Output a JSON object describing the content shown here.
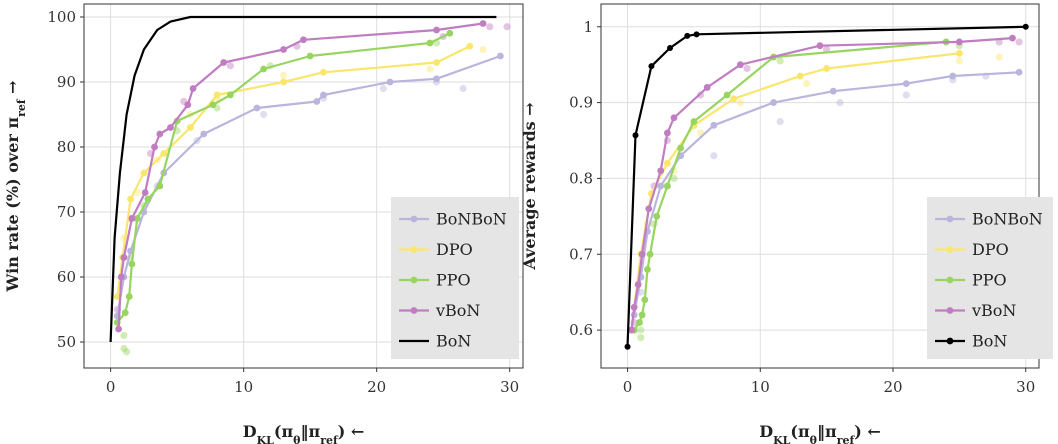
{
  "chart_data": [
    {
      "type": "line",
      "xlabel": "D_KL(π_θ‖π_ref) ←",
      "ylabel": "Win rate (%) over π_ref →",
      "xlim": [
        -2,
        31
      ],
      "ylim": [
        46,
        102
      ],
      "xticks": [
        0,
        10,
        20,
        30
      ],
      "yticks": [
        50,
        60,
        70,
        80,
        90,
        100
      ],
      "grid": true,
      "legend_position": "bottom-right",
      "series": [
        {
          "name": "BoNBoN",
          "color": "#b9b5dc",
          "points": [
            [
              0.5,
              54
            ],
            [
              1,
              60
            ],
            [
              1.5,
              64
            ],
            [
              2.5,
              70
            ],
            [
              4,
              76
            ],
            [
              7,
              82
            ],
            [
              11,
              86
            ],
            [
              15.5,
              87
            ],
            [
              16,
              88
            ],
            [
              21,
              90
            ],
            [
              24.5,
              90.5
            ],
            [
              29.3,
              94
            ]
          ],
          "scatter": [
            [
              1,
              63
            ],
            [
              2,
              69
            ],
            [
              3.5,
              74
            ],
            [
              6.5,
              81
            ],
            [
              11.5,
              85
            ],
            [
              16,
              87.5
            ],
            [
              20.5,
              89
            ],
            [
              24.5,
              90
            ],
            [
              26.5,
              89
            ]
          ]
        },
        {
          "name": "DPO",
          "color": "#f9e66b",
          "points": [
            [
              0.5,
              57
            ],
            [
              0.9,
              63
            ],
            [
              1.5,
              72
            ],
            [
              2.5,
              76
            ],
            [
              4,
              79
            ],
            [
              6,
              83
            ],
            [
              8,
              88
            ],
            [
              13,
              90
            ],
            [
              16,
              91.5
            ],
            [
              24.5,
              93
            ],
            [
              27,
              95.5
            ]
          ],
          "scatter": [
            [
              1,
              66
            ],
            [
              2,
              73
            ],
            [
              3.5,
              78
            ],
            [
              6,
              85
            ],
            [
              8,
              87.5
            ],
            [
              13,
              91
            ],
            [
              24,
              92
            ],
            [
              28,
              95
            ]
          ]
        },
        {
          "name": "PPO",
          "color": "#98d460",
          "points": [
            [
              0.5,
              53
            ],
            [
              1.1,
              54.5
            ],
            [
              1.4,
              57
            ],
            [
              1.6,
              62
            ],
            [
              2,
              69
            ],
            [
              2.8,
              72
            ],
            [
              3.7,
              74
            ],
            [
              5,
              84
            ],
            [
              7.7,
              86.5
            ],
            [
              9,
              88
            ],
            [
              11.5,
              92
            ],
            [
              15,
              94
            ],
            [
              24,
              96
            ],
            [
              25.5,
              97.5
            ]
          ],
          "scatter": [
            [
              1,
              51
            ],
            [
              1,
              49
            ],
            [
              1.2,
              48.5
            ],
            [
              1.5,
              63
            ],
            [
              2.5,
              71
            ],
            [
              5,
              82.5
            ],
            [
              8,
              86
            ],
            [
              12,
              92.5
            ],
            [
              24.5,
              96
            ]
          ]
        },
        {
          "name": "vBoN",
          "color": "#c07dc2",
          "points": [
            [
              0.6,
              52
            ],
            [
              0.8,
              60
            ],
            [
              1,
              63
            ],
            [
              1.6,
              69
            ],
            [
              2.6,
              73
            ],
            [
              3.3,
              80
            ],
            [
              3.7,
              82
            ],
            [
              4.5,
              83
            ],
            [
              5.8,
              86.5
            ],
            [
              6.2,
              89
            ],
            [
              8.5,
              93
            ],
            [
              13,
              95
            ],
            [
              14.5,
              96.5
            ],
            [
              24.5,
              98
            ],
            [
              28,
              99
            ]
          ],
          "scatter": [
            [
              0.5,
              55
            ],
            [
              1.5,
              69
            ],
            [
              3,
              79
            ],
            [
              5.5,
              87
            ],
            [
              9,
              92.5
            ],
            [
              14,
              95.5
            ],
            [
              25,
              97
            ],
            [
              28.5,
              98.5
            ],
            [
              29.8,
              98.5
            ]
          ]
        },
        {
          "name": "BoN",
          "color": "#000000",
          "points": [
            [
              0,
              50
            ],
            [
              0.3,
              66
            ],
            [
              0.7,
              76
            ],
            [
              1.2,
              85
            ],
            [
              1.8,
              91
            ],
            [
              2.5,
              95
            ],
            [
              3.5,
              98
            ],
            [
              4.5,
              99.3
            ],
            [
              6,
              100
            ],
            [
              10,
              100
            ],
            [
              20,
              100
            ],
            [
              29,
              100
            ]
          ],
          "scatter": []
        }
      ]
    },
    {
      "type": "line",
      "xlabel": "D_KL(π_θ‖π_ref) ←",
      "ylabel": "Average rewards →",
      "xlim": [
        -2,
        31
      ],
      "ylim": [
        0.55,
        1.03
      ],
      "xticks": [
        0,
        10,
        20,
        30
      ],
      "yticks": [
        0.6,
        0.7,
        0.8,
        0.9,
        1
      ],
      "grid": true,
      "legend_position": "bottom-right",
      "series": [
        {
          "name": "BoNBoN",
          "color": "#b9b5dc",
          "points": [
            [
              0.5,
              0.62
            ],
            [
              1,
              0.67
            ],
            [
              1.5,
              0.73
            ],
            [
              2.5,
              0.79
            ],
            [
              4,
              0.83
            ],
            [
              6.5,
              0.87
            ],
            [
              11,
              0.9
            ],
            [
              15.5,
              0.915
            ],
            [
              21,
              0.925
            ],
            [
              24.5,
              0.935
            ],
            [
              29.5,
              0.94
            ]
          ],
          "scatter": [
            [
              1,
              0.65
            ],
            [
              3,
              0.79
            ],
            [
              6.5,
              0.83
            ],
            [
              11.5,
              0.875
            ],
            [
              16,
              0.9
            ],
            [
              21,
              0.91
            ],
            [
              24.5,
              0.93
            ],
            [
              27,
              0.935
            ]
          ]
        },
        {
          "name": "DPO",
          "color": "#f9e66b",
          "points": [
            [
              0.5,
              0.63
            ],
            [
              1,
              0.7
            ],
            [
              1.8,
              0.78
            ],
            [
              3,
              0.82
            ],
            [
              5,
              0.87
            ],
            [
              8,
              0.905
            ],
            [
              13,
              0.935
            ],
            [
              15,
              0.945
            ],
            [
              25,
              0.965
            ]
          ],
          "scatter": [
            [
              1.5,
              0.74
            ],
            [
              3.5,
              0.81
            ],
            [
              5.5,
              0.86
            ],
            [
              8.5,
              0.9
            ],
            [
              13.5,
              0.925
            ],
            [
              25,
              0.955
            ],
            [
              28,
              0.96
            ]
          ]
        },
        {
          "name": "PPO",
          "color": "#98d460",
          "points": [
            [
              0.5,
              0.6
            ],
            [
              0.9,
              0.61
            ],
            [
              1.1,
              0.62
            ],
            [
              1.3,
              0.64
            ],
            [
              1.5,
              0.68
            ],
            [
              1.7,
              0.7
            ],
            [
              2.2,
              0.75
            ],
            [
              3,
              0.79
            ],
            [
              4,
              0.84
            ],
            [
              5,
              0.875
            ],
            [
              7.5,
              0.91
            ],
            [
              11,
              0.96
            ],
            [
              24,
              0.98
            ]
          ],
          "scatter": [
            [
              1,
              0.59
            ],
            [
              1,
              0.6
            ],
            [
              2,
              0.74
            ],
            [
              3.5,
              0.8
            ],
            [
              5,
              0.87
            ],
            [
              11.5,
              0.955
            ],
            [
              25,
              0.975
            ]
          ]
        },
        {
          "name": "vBoN",
          "color": "#c07dc2",
          "points": [
            [
              0.3,
              0.6
            ],
            [
              0.5,
              0.63
            ],
            [
              0.8,
              0.66
            ],
            [
              1.1,
              0.7
            ],
            [
              1.6,
              0.76
            ],
            [
              2.5,
              0.81
            ],
            [
              3,
              0.86
            ],
            [
              3.5,
              0.88
            ],
            [
              6,
              0.92
            ],
            [
              8.5,
              0.95
            ],
            [
              14.5,
              0.975
            ],
            [
              25,
              0.98
            ],
            [
              29,
              0.985
            ]
          ],
          "scatter": [
            [
              0.5,
              0.61
            ],
            [
              1,
              0.67
            ],
            [
              2,
              0.79
            ],
            [
              3,
              0.85
            ],
            [
              5.5,
              0.91
            ],
            [
              9,
              0.945
            ],
            [
              15,
              0.97
            ],
            [
              28,
              0.98
            ],
            [
              29.5,
              0.98
            ]
          ]
        },
        {
          "name": "BoN",
          "color": "#000000",
          "points": [
            [
              0,
              0.578
            ],
            [
              0.6,
              0.857
            ],
            [
              1.8,
              0.948
            ],
            [
              3.2,
              0.972
            ],
            [
              4.5,
              0.988
            ],
            [
              5.2,
              0.99
            ],
            [
              30,
              1.0
            ]
          ],
          "scatter": []
        }
      ]
    }
  ]
}
